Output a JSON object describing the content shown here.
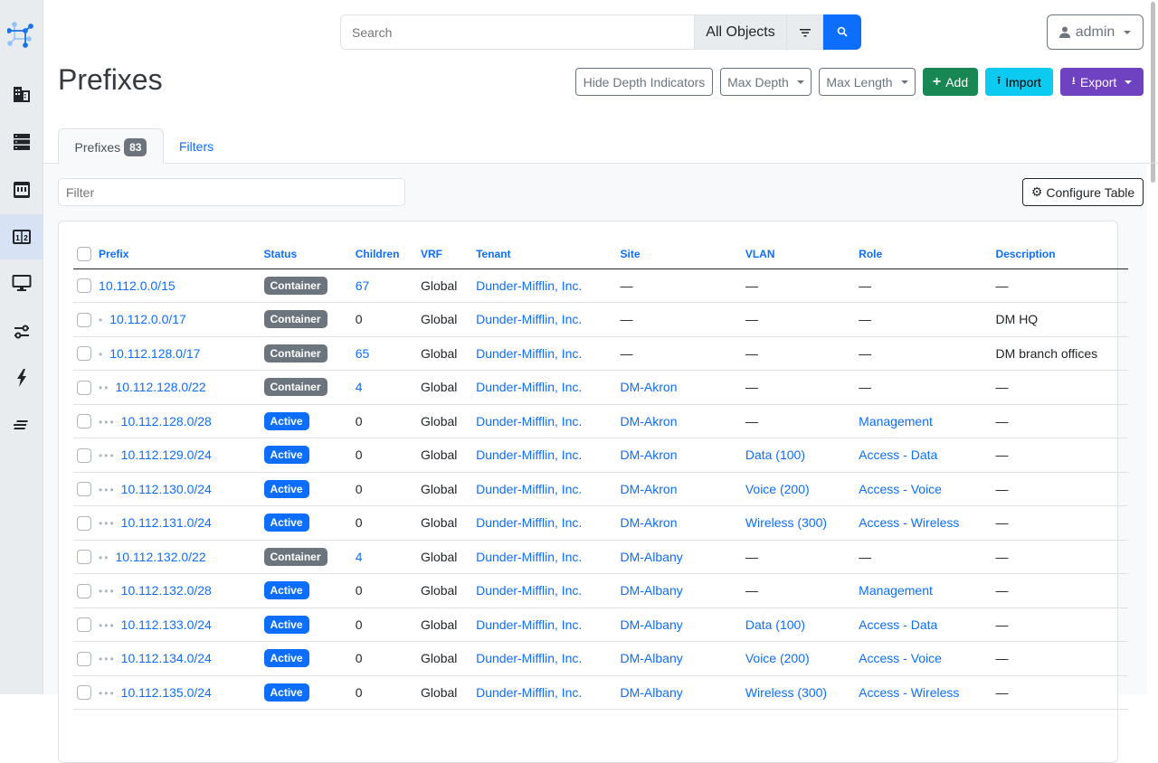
{
  "search": {
    "placeholder": "Search",
    "scope": "All Objects"
  },
  "user": {
    "name": "admin"
  },
  "page": {
    "title": "Prefixes"
  },
  "actions": {
    "hide_depth": "Hide Depth Indicators",
    "max_depth": "Max Depth",
    "max_length": "Max Length",
    "add": "Add",
    "import": "Import",
    "export": "Export"
  },
  "colors": {
    "add": "#198754",
    "import": "#0dcaf0",
    "export": "#6f42c1",
    "primary": "#0d6efd",
    "container": "#6c757d"
  },
  "tabs": {
    "prefixes": "Prefixes",
    "count": "83",
    "filters": "Filters"
  },
  "filter": {
    "placeholder": "Filter"
  },
  "configure": "Configure Table",
  "table": {
    "columns": [
      "Prefix",
      "Status",
      "Children",
      "VRF",
      "Tenant",
      "Site",
      "VLAN",
      "Role",
      "Description"
    ],
    "rows": [
      {
        "depth": 0,
        "prefix": "10.112.0.0/15",
        "status": "Container",
        "children": "67",
        "vrf": "Global",
        "tenant": "Dunder-Mifflin, Inc.",
        "site": "—",
        "vlan": "—",
        "role": "—",
        "description": "—"
      },
      {
        "depth": 1,
        "prefix": "10.112.0.0/17",
        "status": "Container",
        "children": "0",
        "vrf": "Global",
        "tenant": "Dunder-Mifflin, Inc.",
        "site": "—",
        "vlan": "—",
        "role": "—",
        "description": "DM HQ"
      },
      {
        "depth": 1,
        "prefix": "10.112.128.0/17",
        "status": "Container",
        "children": "65",
        "vrf": "Global",
        "tenant": "Dunder-Mifflin, Inc.",
        "site": "—",
        "vlan": "—",
        "role": "—",
        "description": "DM branch offices"
      },
      {
        "depth": 2,
        "prefix": "10.112.128.0/22",
        "status": "Container",
        "children": "4",
        "vrf": "Global",
        "tenant": "Dunder-Mifflin, Inc.",
        "site": "DM-Akron",
        "vlan": "—",
        "role": "—",
        "description": "—"
      },
      {
        "depth": 3,
        "prefix": "10.112.128.0/28",
        "status": "Active",
        "children": "0",
        "vrf": "Global",
        "tenant": "Dunder-Mifflin, Inc.",
        "site": "DM-Akron",
        "vlan": "—",
        "role": "Management",
        "description": "—"
      },
      {
        "depth": 3,
        "prefix": "10.112.129.0/24",
        "status": "Active",
        "children": "0",
        "vrf": "Global",
        "tenant": "Dunder-Mifflin, Inc.",
        "site": "DM-Akron",
        "vlan": "Data (100)",
        "role": "Access - Data",
        "description": "—"
      },
      {
        "depth": 3,
        "prefix": "10.112.130.0/24",
        "status": "Active",
        "children": "0",
        "vrf": "Global",
        "tenant": "Dunder-Mifflin, Inc.",
        "site": "DM-Akron",
        "vlan": "Voice (200)",
        "role": "Access - Voice",
        "description": "—"
      },
      {
        "depth": 3,
        "prefix": "10.112.131.0/24",
        "status": "Active",
        "children": "0",
        "vrf": "Global",
        "tenant": "Dunder-Mifflin, Inc.",
        "site": "DM-Akron",
        "vlan": "Wireless (300)",
        "role": "Access - Wireless",
        "description": "—"
      },
      {
        "depth": 2,
        "prefix": "10.112.132.0/22",
        "status": "Container",
        "children": "4",
        "vrf": "Global",
        "tenant": "Dunder-Mifflin, Inc.",
        "site": "DM-Albany",
        "vlan": "—",
        "role": "—",
        "description": "—"
      },
      {
        "depth": 3,
        "prefix": "10.112.132.0/28",
        "status": "Active",
        "children": "0",
        "vrf": "Global",
        "tenant": "Dunder-Mifflin, Inc.",
        "site": "DM-Albany",
        "vlan": "—",
        "role": "Management",
        "description": "—"
      },
      {
        "depth": 3,
        "prefix": "10.112.133.0/24",
        "status": "Active",
        "children": "0",
        "vrf": "Global",
        "tenant": "Dunder-Mifflin, Inc.",
        "site": "DM-Albany",
        "vlan": "Data (100)",
        "role": "Access - Data",
        "description": "—"
      },
      {
        "depth": 3,
        "prefix": "10.112.134.0/24",
        "status": "Active",
        "children": "0",
        "vrf": "Global",
        "tenant": "Dunder-Mifflin, Inc.",
        "site": "DM-Albany",
        "vlan": "Voice (200)",
        "role": "Access - Voice",
        "description": "—"
      },
      {
        "depth": 3,
        "prefix": "10.112.135.0/24",
        "status": "Active",
        "children": "0",
        "vrf": "Global",
        "tenant": "Dunder-Mifflin, Inc.",
        "site": "DM-Albany",
        "vlan": "Wireless (300)",
        "role": "Access - Wireless",
        "description": "—"
      }
    ]
  },
  "sidebar": {
    "icons": [
      "logo",
      "building-icon",
      "server-icon",
      "rack-icon",
      "ipam-icon",
      "monitor-icon",
      "sliders-icon",
      "lightning-icon",
      "lines-icon"
    ],
    "active": "ipam-icon"
  }
}
